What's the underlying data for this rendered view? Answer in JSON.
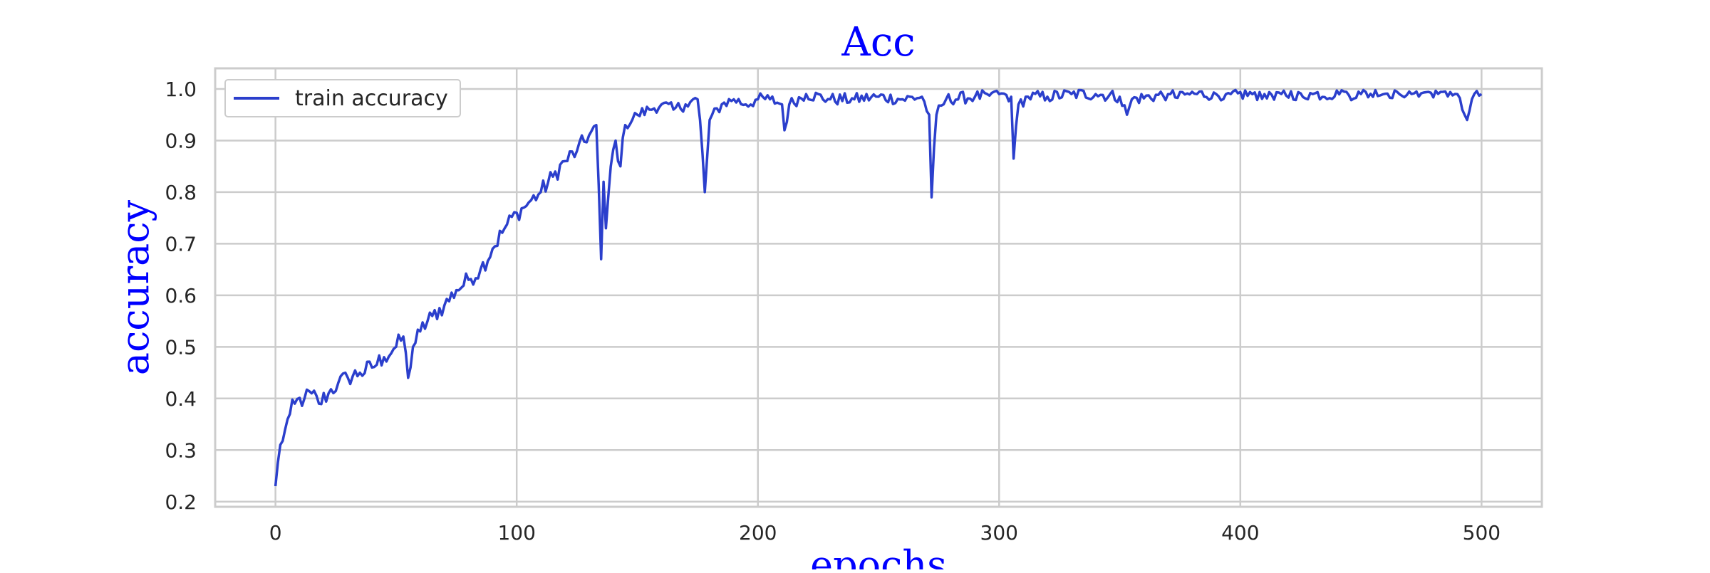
{
  "chart_data": {
    "type": "line",
    "title": "Acc",
    "xlabel": "epochs",
    "ylabel": "accuracy",
    "xlim": [
      -25,
      525
    ],
    "ylim": [
      0.19,
      1.04
    ],
    "xticks": [
      0,
      100,
      200,
      300,
      400,
      500
    ],
    "xtick_labels": [
      "0",
      "100",
      "200",
      "300",
      "400",
      "500"
    ],
    "yticks": [
      0.2,
      0.3,
      0.4,
      0.5,
      0.6,
      0.7,
      0.8,
      0.9,
      1.0
    ],
    "ytick_labels": [
      "0.2",
      "0.3",
      "0.4",
      "0.5",
      "0.6",
      "0.7",
      "0.8",
      "0.9",
      "1.0"
    ],
    "grid": true,
    "legend_position": "upper-left",
    "colors": {
      "title": "#0000ff",
      "axis_label": "#0000ff",
      "line": "#2b3fcc",
      "grid": "#cccccc",
      "frame": "#cccccc"
    },
    "series": [
      {
        "name": "train accuracy",
        "key_points": [
          [
            0,
            0.23
          ],
          [
            2,
            0.31
          ],
          [
            4,
            0.34
          ],
          [
            6,
            0.37
          ],
          [
            8,
            0.39
          ],
          [
            12,
            0.4
          ],
          [
            15,
            0.41
          ],
          [
            18,
            0.39
          ],
          [
            22,
            0.41
          ],
          [
            26,
            0.43
          ],
          [
            30,
            0.44
          ],
          [
            35,
            0.45
          ],
          [
            40,
            0.46
          ],
          [
            45,
            0.48
          ],
          [
            50,
            0.5
          ],
          [
            53,
            0.52
          ],
          [
            55,
            0.44
          ],
          [
            57,
            0.5
          ],
          [
            60,
            0.53
          ],
          [
            65,
            0.56
          ],
          [
            70,
            0.58
          ],
          [
            75,
            0.61
          ],
          [
            80,
            0.63
          ],
          [
            85,
            0.65
          ],
          [
            90,
            0.69
          ],
          [
            95,
            0.73
          ],
          [
            100,
            0.76
          ],
          [
            103,
            0.77
          ],
          [
            105,
            0.78
          ],
          [
            110,
            0.8
          ],
          [
            115,
            0.83
          ],
          [
            120,
            0.86
          ],
          [
            125,
            0.88
          ],
          [
            130,
            0.91
          ],
          [
            133,
            0.93
          ],
          [
            135,
            0.67
          ],
          [
            136,
            0.82
          ],
          [
            137,
            0.73
          ],
          [
            139,
            0.85
          ],
          [
            141,
            0.9
          ],
          [
            143,
            0.85
          ],
          [
            145,
            0.93
          ],
          [
            150,
            0.95
          ],
          [
            155,
            0.96
          ],
          [
            160,
            0.97
          ],
          [
            165,
            0.96
          ],
          [
            170,
            0.97
          ],
          [
            175,
            0.98
          ],
          [
            176,
            0.94
          ],
          [
            178,
            0.8
          ],
          [
            180,
            0.94
          ],
          [
            185,
            0.97
          ],
          [
            190,
            0.98
          ],
          [
            195,
            0.97
          ],
          [
            200,
            0.98
          ],
          [
            205,
            0.98
          ],
          [
            210,
            0.97
          ],
          [
            211,
            0.92
          ],
          [
            213,
            0.97
          ],
          [
            220,
            0.99
          ],
          [
            230,
            0.98
          ],
          [
            240,
            0.98
          ],
          [
            250,
            0.985
          ],
          [
            260,
            0.98
          ],
          [
            268,
            0.985
          ],
          [
            271,
            0.95
          ],
          [
            272,
            0.79
          ],
          [
            274,
            0.95
          ],
          [
            278,
            0.98
          ],
          [
            290,
            0.985
          ],
          [
            300,
            0.99
          ],
          [
            305,
            0.985
          ],
          [
            306,
            0.865
          ],
          [
            308,
            0.97
          ],
          [
            312,
            0.985
          ],
          [
            320,
            0.985
          ],
          [
            330,
            0.99
          ],
          [
            340,
            0.99
          ],
          [
            350,
            0.985
          ],
          [
            353,
            0.95
          ],
          [
            355,
            0.98
          ],
          [
            370,
            0.99
          ],
          [
            390,
            0.99
          ],
          [
            410,
            0.99
          ],
          [
            430,
            0.99
          ],
          [
            450,
            0.99
          ],
          [
            470,
            0.995
          ],
          [
            485,
            0.995
          ],
          [
            490,
            0.99
          ],
          [
            492,
            0.96
          ],
          [
            494,
            0.94
          ],
          [
            496,
            0.98
          ],
          [
            500,
            0.99
          ]
        ]
      }
    ]
  }
}
